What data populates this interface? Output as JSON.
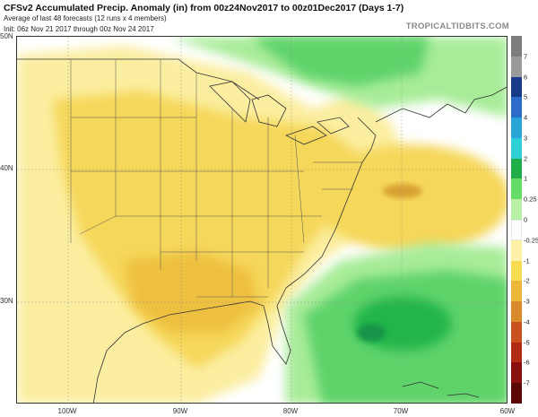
{
  "header": {
    "title": "CFSv2 Accumulated Precip. Anomaly (in) from 00z24Nov2017 to 00z01Dec2017 (Days 1-7)",
    "subtitle": "Average of last 48 forecasts (12 runs x 4 members)",
    "init": "Init: 06z Nov 21 2017 through 00z Nov 24 2017",
    "brand": "TROPICALTIDBITS.COM"
  },
  "map": {
    "lat_labels": [
      "50N",
      "40N",
      "30N"
    ],
    "lon_labels": [
      "100W",
      "90W",
      "80W",
      "70W",
      "60W"
    ]
  },
  "colorbar": {
    "labels": [
      "7",
      "6",
      "5",
      "4",
      "3",
      "2",
      "1",
      "0.25",
      "0",
      "-0.25",
      "-1",
      "-2",
      "-3",
      "-4",
      "-5",
      "-6",
      "-7"
    ],
    "colors": [
      "#7e7e7e",
      "#9a9a9a",
      "#1a3a8a",
      "#2a6cc8",
      "#2aa3d6",
      "#2ccfd6",
      "#1fae4a",
      "#66dd66",
      "#b8f0a8",
      "#ffffff",
      "#fff2a8",
      "#f7dc52",
      "#ecb83a",
      "#d98a2a",
      "#c8521e",
      "#b02a14",
      "#8a1010",
      "#5a0808"
    ]
  }
}
